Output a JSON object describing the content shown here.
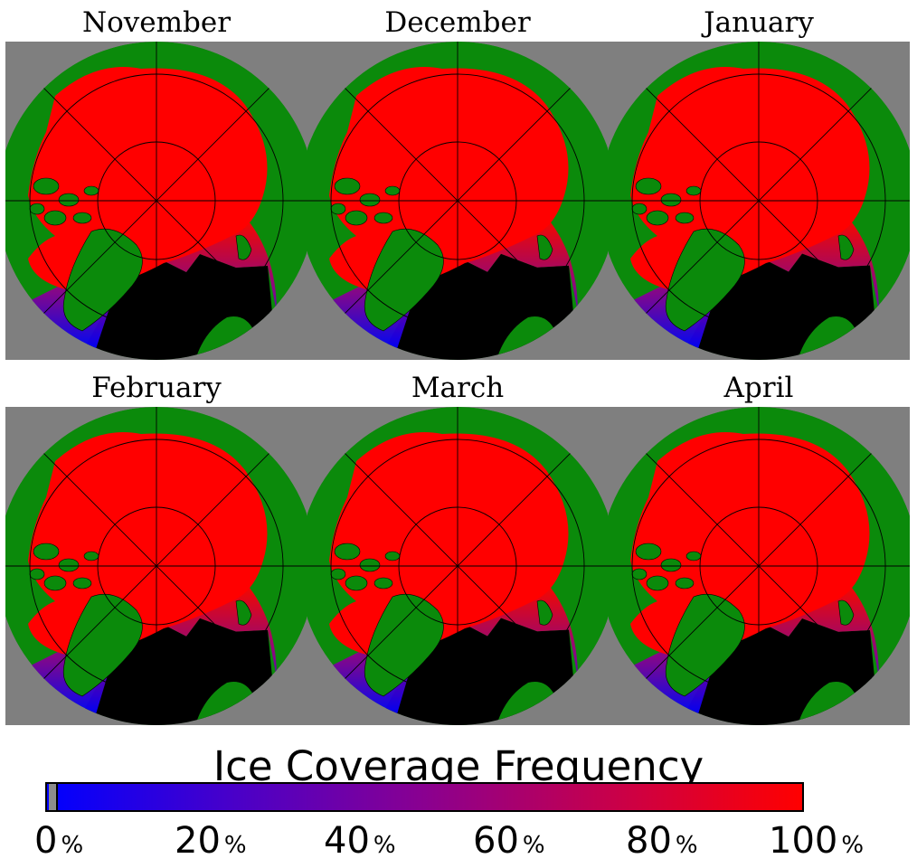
{
  "figure": {
    "panels": [
      {
        "month": "November"
      },
      {
        "month": "December"
      },
      {
        "month": "January"
      },
      {
        "month": "February"
      },
      {
        "month": "March"
      },
      {
        "month": "April"
      }
    ],
    "colorbar": {
      "title": "Ice Coverage Frequency",
      "ticks": [
        {
          "value": "0",
          "unit": "%"
        },
        {
          "value": "20",
          "unit": "%"
        },
        {
          "value": "40",
          "unit": "%"
        },
        {
          "value": "60",
          "unit": "%"
        },
        {
          "value": "80",
          "unit": "%"
        },
        {
          "value": "100",
          "unit": "%"
        }
      ],
      "min_color": "#0000ff",
      "max_color": "#ff0000"
    },
    "colors": {
      "land": "#0b8a0b",
      "ice": "#ff0000",
      "open_water": "#000000",
      "missing": "#7f7f7f",
      "grid": "#000000"
    }
  }
}
